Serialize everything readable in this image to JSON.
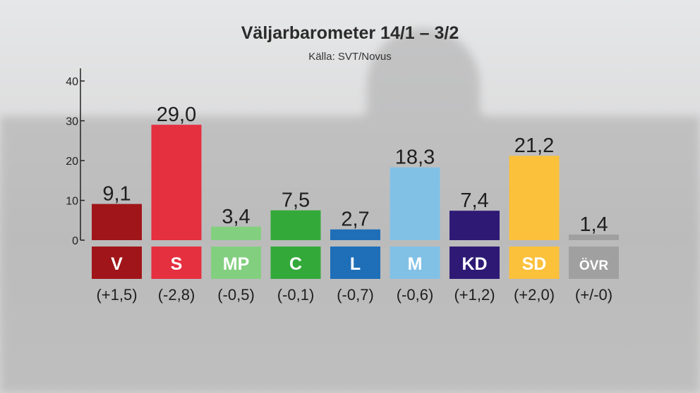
{
  "header": {
    "title": "Väljarbarometer 14/1 – 3/2",
    "source": "Källa: SVT/Novus"
  },
  "chart_data": {
    "type": "bar",
    "title": "Väljarbarometer 14/1 – 3/2",
    "subtitle": "Källa: SVT/Novus",
    "categories": [
      "V",
      "S",
      "MP",
      "C",
      "L",
      "M",
      "KD",
      "SD",
      "ÖVR"
    ],
    "values": [
      9.1,
      29.0,
      3.4,
      7.5,
      2.7,
      18.3,
      7.4,
      21.2,
      1.4
    ],
    "value_labels": [
      "9,1",
      "29,0",
      "3,4",
      "7,5",
      "2,7",
      "18,3",
      "7,4",
      "21,2",
      "1,4"
    ],
    "changes": [
      "(+1,5)",
      "(-2,8)",
      "(-0,5)",
      "(-0,1)",
      "(-0,7)",
      "(-0,6)",
      "(+1,2)",
      "(+2,0)",
      "(+/-0)"
    ],
    "colors": [
      "#a01519",
      "#e5303f",
      "#83cf80",
      "#33a93a",
      "#1f6fb8",
      "#82c1e6",
      "#2e1a75",
      "#fbc13b",
      "#a0a0a0"
    ],
    "yticks": [
      "0",
      "10",
      "20",
      "30",
      "40"
    ],
    "ylim": [
      0,
      40
    ],
    "grid": false,
    "legend": "none"
  }
}
